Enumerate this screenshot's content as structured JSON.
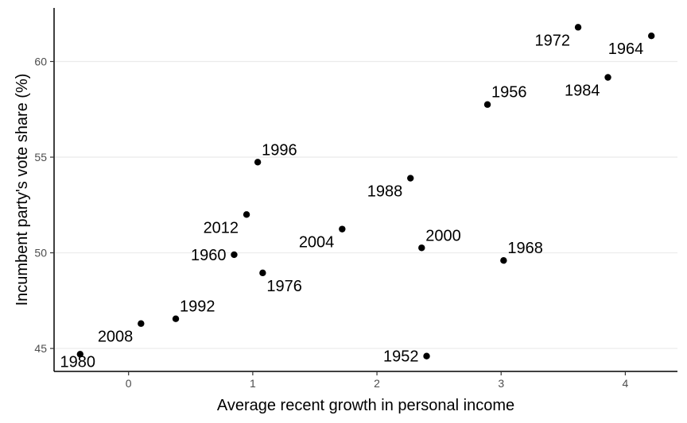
{
  "chart_data": {
    "type": "scatter",
    "title": "",
    "xlabel": "Average recent growth in personal income",
    "ylabel": "Incumbent party's vote share (%)",
    "xlim": [
      -0.6,
      4.42
    ],
    "ylim": [
      43.8,
      62.8
    ],
    "x_ticks": [
      0,
      1,
      2,
      3,
      4
    ],
    "y_ticks": [
      45,
      50,
      55,
      60
    ],
    "grid": "horizontal major lines",
    "legend": "none",
    "point_color": "#000000",
    "points": [
      {
        "label": "1952",
        "x": 2.4,
        "y": 44.6,
        "label_pos": "left"
      },
      {
        "label": "1956",
        "x": 2.89,
        "y": 57.75,
        "label_pos": "upper-right"
      },
      {
        "label": "1960",
        "x": 0.85,
        "y": 49.9,
        "label_pos": "left"
      },
      {
        "label": "1964",
        "x": 4.21,
        "y": 61.34,
        "label_pos": "below-left"
      },
      {
        "label": "1968",
        "x": 3.02,
        "y": 49.6,
        "label_pos": "upper-right"
      },
      {
        "label": "1972",
        "x": 3.62,
        "y": 61.79,
        "label_pos": "below-left"
      },
      {
        "label": "1976",
        "x": 1.08,
        "y": 48.95,
        "label_pos": "below-right"
      },
      {
        "label": "1980",
        "x": -0.39,
        "y": 44.7,
        "label_pos": "below"
      },
      {
        "label": "1984",
        "x": 3.86,
        "y": 59.17,
        "label_pos": "below-left"
      },
      {
        "label": "1988",
        "x": 2.27,
        "y": 53.9,
        "label_pos": "below-left"
      },
      {
        "label": "1992",
        "x": 0.38,
        "y": 46.55,
        "label_pos": "upper-right"
      },
      {
        "label": "1996",
        "x": 1.04,
        "y": 54.74,
        "label_pos": "upper-right"
      },
      {
        "label": "2000",
        "x": 2.36,
        "y": 50.26,
        "label_pos": "upper-right"
      },
      {
        "label": "2004",
        "x": 1.72,
        "y": 51.24,
        "label_pos": "below-left"
      },
      {
        "label": "2008",
        "x": 0.1,
        "y": 46.3,
        "label_pos": "below-left"
      },
      {
        "label": "2012",
        "x": 0.95,
        "y": 52.0,
        "label_pos": "below-left"
      }
    ]
  }
}
